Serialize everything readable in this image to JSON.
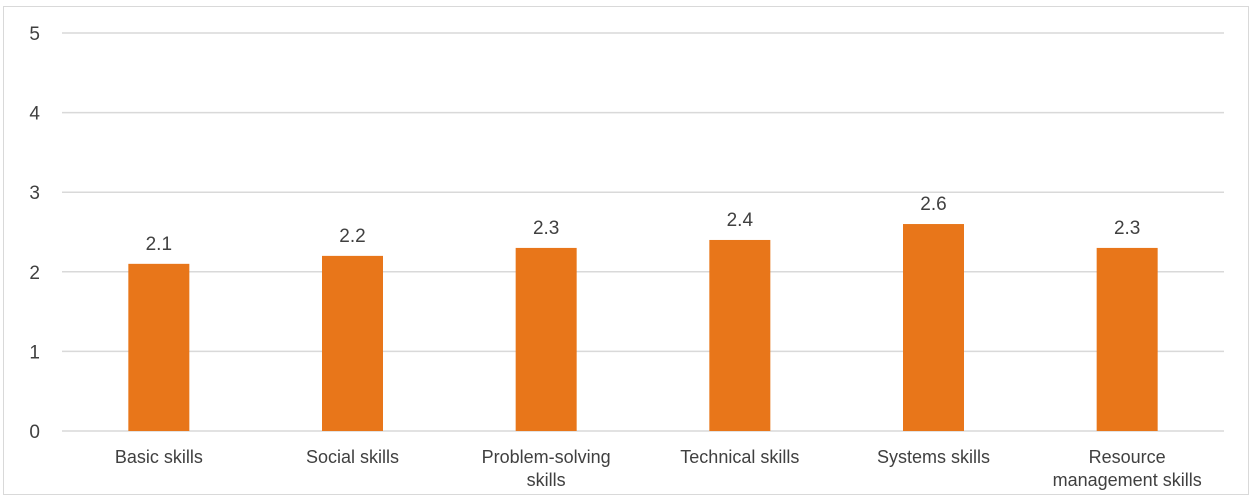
{
  "chart_data": {
    "type": "bar",
    "title": "",
    "xlabel": "",
    "ylabel": "",
    "categories": [
      [
        "Basic skills"
      ],
      [
        "Social skills"
      ],
      [
        "Problem-solving",
        "skills"
      ],
      [
        "Technical skills"
      ],
      [
        "Systems skills"
      ],
      [
        "Resource",
        "management skills"
      ]
    ],
    "values": [
      2.1,
      2.2,
      2.3,
      2.4,
      2.6,
      2.3
    ],
    "value_labels": [
      "2.1",
      "2.2",
      "2.3",
      "2.4",
      "2.6",
      "2.3"
    ],
    "ylim": [
      0,
      5
    ],
    "yticks": [
      0,
      1,
      2,
      3,
      4,
      5
    ],
    "grid": true,
    "legend": "none",
    "bar_color": "#E8761A",
    "grid_color": "#d9d9d9"
  }
}
